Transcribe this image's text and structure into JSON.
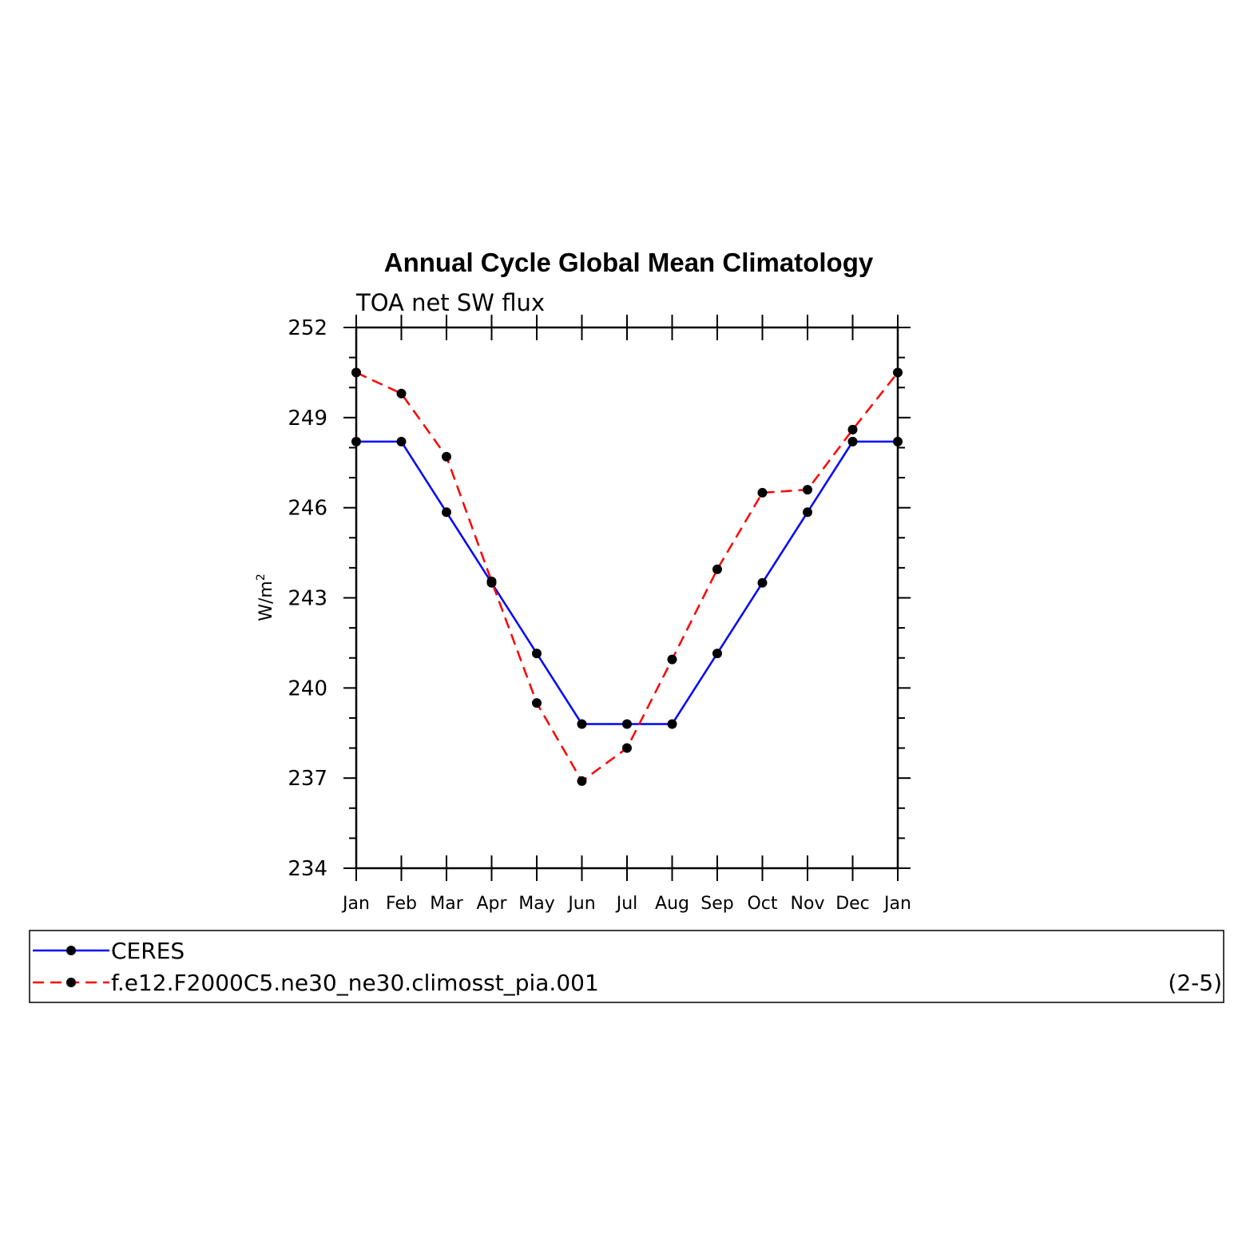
{
  "chart_data": {
    "type": "line",
    "title": "Annual Cycle Global Mean Climatology",
    "subtitle": "TOA net SW flux",
    "ylabel_base": "W/m",
    "ylabel_sup": "2",
    "categories": [
      "Jan",
      "Feb",
      "Mar",
      "Apr",
      "May",
      "Jun",
      "Jul",
      "Aug",
      "Sep",
      "Oct",
      "Nov",
      "Dec",
      "Jan"
    ],
    "ylim": [
      234,
      252
    ],
    "yticks": [
      234,
      237,
      240,
      243,
      246,
      249,
      252
    ],
    "series": [
      {
        "name": "CERES",
        "color": "#0000ff",
        "dash": "solid",
        "values": [
          248.2,
          248.2,
          245.85,
          243.5,
          241.15,
          238.8,
          238.8,
          238.8,
          241.15,
          243.5,
          245.85,
          248.2,
          248.2
        ]
      },
      {
        "name": "f.e12.F2000C5.ne30_ne30.climosst_pia.001",
        "color": "#ff0000",
        "dash": "dashed",
        "values": [
          250.5,
          249.8,
          247.7,
          243.55,
          239.5,
          236.9,
          238.0,
          240.95,
          243.95,
          246.5,
          246.6,
          248.6,
          250.5
        ]
      }
    ],
    "legend_position": "bottom",
    "legend_note": "(2-5)",
    "grid": false
  }
}
